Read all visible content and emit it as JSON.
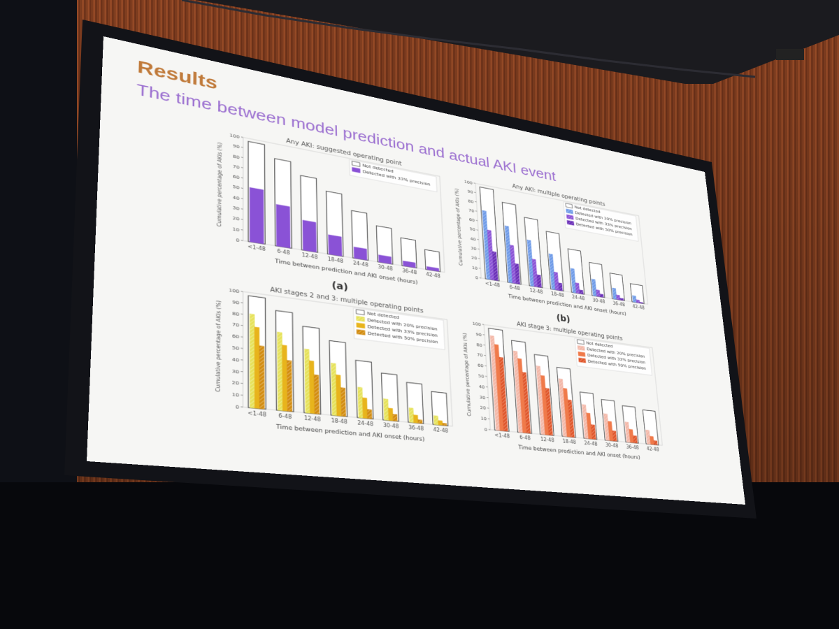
{
  "slide": {
    "title": "Results",
    "subtitle": "The time between model prediction and actual AKI event",
    "colors": {
      "title": "#c07a3a",
      "subtitle": "#9b6fd0"
    }
  },
  "chart_data": [
    {
      "id": "a",
      "panel_label": "(a)",
      "type": "bar",
      "title": "Any AKI: suggested operating point",
      "xlabel": "Time between prediction and AKI onset (hours)",
      "ylabel": "Cumulative percentage of AKIs (%)",
      "ylim": [
        0,
        100
      ],
      "yticks": [
        0,
        10,
        20,
        30,
        40,
        50,
        60,
        70,
        80,
        90,
        100
      ],
      "categories": [
        "<1-48",
        "6-48",
        "12-48",
        "18-48",
        "24-48",
        "30-48",
        "36-48",
        "42-48"
      ],
      "outline": {
        "name": "Not detected",
        "values": [
          97,
          85,
          73,
          62,
          47,
          36,
          28,
          20
        ]
      },
      "series": [
        {
          "name": "Detected with 33% precision",
          "color": "#8a52d6",
          "hatch": false,
          "values": [
            52,
            40,
            29,
            19,
            11,
            7,
            5,
            3
          ]
        }
      ],
      "legend": "top-right"
    },
    {
      "id": "b",
      "panel_label": "(b)",
      "type": "bar",
      "title": "Any AKI: multiple operating points",
      "xlabel": "Time between prediction and AKI onset (hours)",
      "ylabel": "Cumulative percentage of AKIs (%)",
      "ylim": [
        0,
        100
      ],
      "yticks": [
        0,
        10,
        20,
        30,
        40,
        50,
        60,
        70,
        80,
        90,
        100
      ],
      "categories": [
        "<1-48",
        "6-48",
        "12-48",
        "18-48",
        "24-48",
        "30-48",
        "36-48",
        "42-48"
      ],
      "outline": {
        "name": "Not detected",
        "values": [
          97,
          85,
          73,
          62,
          47,
          36,
          28,
          20
        ]
      },
      "series": [
        {
          "name": "Detected with 20% precision",
          "color": "#6f9be8",
          "hatch": true,
          "values": [
            72,
            60,
            49,
            38,
            26,
            18,
            12,
            7
          ]
        },
        {
          "name": "Detected with 33% precision",
          "color": "#8a52d6",
          "hatch": true,
          "values": [
            52,
            40,
            29,
            19,
            11,
            7,
            5,
            3
          ]
        },
        {
          "name": "Detected with 50% precision",
          "color": "#6a2fb8",
          "hatch": true,
          "values": [
            30,
            21,
            13,
            8,
            4,
            3,
            2,
            1
          ]
        }
      ],
      "legend": "top-right"
    },
    {
      "id": "c",
      "panel_label": "",
      "type": "bar",
      "title": "AKI stages 2 and 3: multiple operating points",
      "xlabel": "Time between prediction and AKI onset (hours)",
      "ylabel": "Cumulative percentage of AKIs (%)",
      "ylim": [
        0,
        100
      ],
      "yticks": [
        0,
        10,
        20,
        30,
        40,
        50,
        60,
        70,
        80,
        90,
        100
      ],
      "categories": [
        "<1-48",
        "6-48",
        "12-48",
        "18-48",
        "24-48",
        "30-48",
        "36-48",
        "42-48"
      ],
      "outline": {
        "name": "Not detected",
        "values": [
          97,
          87,
          76,
          66,
          51,
          42,
          36,
          30
        ]
      },
      "series": [
        {
          "name": "Detected with 20% precision",
          "color": "#e6e25a",
          "hatch": true,
          "values": [
            81,
            68,
            56,
            46,
            27,
            19,
            13,
            8
          ]
        },
        {
          "name": "Detected with 33% precision",
          "color": "#e8b41c",
          "hatch": false,
          "values": [
            70,
            57,
            46,
            36,
            18,
            11,
            7,
            4
          ]
        },
        {
          "name": "Detected with 50% precision",
          "color": "#d28c10",
          "hatch": true,
          "values": [
            54,
            44,
            34,
            25,
            8,
            6,
            3,
            2
          ]
        }
      ],
      "legend": "top-right"
    },
    {
      "id": "d",
      "panel_label": "",
      "type": "bar",
      "title": "AKI stage 3: multiple operating points",
      "xlabel": "Time between prediction and AKI onset (hours)",
      "ylabel": "Cumulative percentage of AKIs (%)",
      "ylim": [
        0,
        100
      ],
      "yticks": [
        0,
        10,
        20,
        30,
        40,
        50,
        60,
        70,
        80,
        90,
        100
      ],
      "categories": [
        "<1-48",
        "6-48",
        "12-48",
        "18-48",
        "24-48",
        "30-48",
        "36-48",
        "42-48"
      ],
      "outline": {
        "name": "Not detected",
        "values": [
          97,
          88,
          77,
          67,
          45,
          40,
          36,
          34
        ]
      },
      "series": [
        {
          "name": "Detected with 20% precision",
          "color": "#f3b8a8",
          "hatch": true,
          "values": [
            90,
            78,
            66,
            56,
            33,
            26,
            20,
            14
          ]
        },
        {
          "name": "Detected with 33% precision",
          "color": "#f07a4a",
          "hatch": false,
          "values": [
            82,
            71,
            57,
            47,
            25,
            19,
            13,
            8
          ]
        },
        {
          "name": "Detected with 50% precision",
          "color": "#e0562a",
          "hatch": true,
          "values": [
            70,
            58,
            45,
            36,
            14,
            10,
            7,
            4
          ]
        }
      ],
      "legend": "top-right"
    }
  ]
}
